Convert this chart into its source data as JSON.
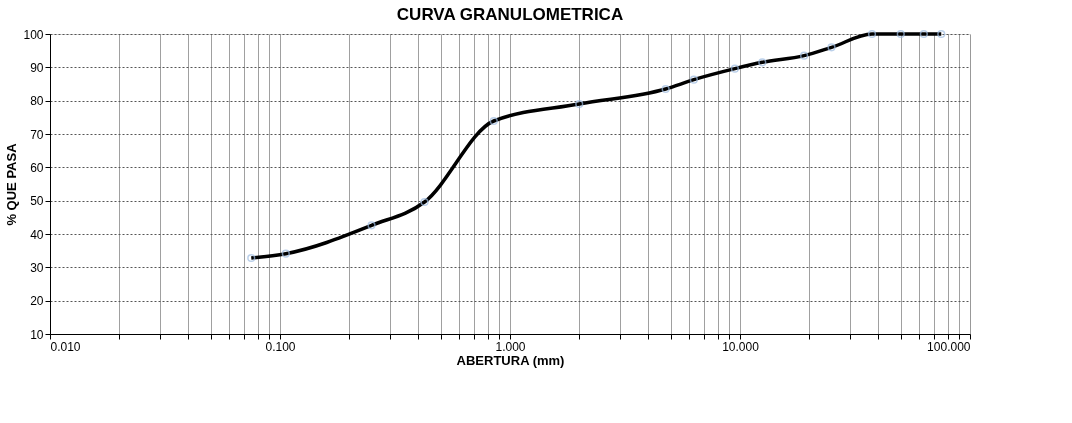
{
  "chart_data": {
    "type": "line",
    "title": "CURVA GRANULOMETRICA",
    "xlabel": "ABERTURA (mm)",
    "ylabel": "% QUE PASA",
    "x": [
      0.075,
      0.106,
      0.25,
      0.425,
      0.85,
      2.0,
      4.75,
      6.3,
      9.5,
      12.5,
      19.0,
      25.0,
      37.5,
      50.0,
      63.0,
      75.0
    ],
    "series": [
      {
        "color": "#000000",
        "values": [
          32.8,
          34.1,
          42.6,
          49.6,
          73.9,
          79.0,
          83.5,
          86.3,
          89.6,
          91.5,
          93.5,
          96.0,
          100,
          100,
          100,
          100
        ]
      }
    ],
    "log": "x",
    "xlim": [
      0.01,
      100
    ],
    "ylim": [
      10,
      100
    ],
    "xticks": [
      {
        "value": 0.01,
        "label": "0.010"
      },
      {
        "value": 0.02,
        "label": null
      },
      {
        "value": 0.03,
        "label": null
      },
      {
        "value": 0.04,
        "label": null
      },
      {
        "value": 0.05,
        "label": null
      },
      {
        "value": 0.06,
        "label": null
      },
      {
        "value": 0.07,
        "label": null
      },
      {
        "value": 0.08,
        "label": null
      },
      {
        "value": 0.09,
        "label": null
      },
      {
        "value": 0.1,
        "label": "0.100"
      },
      {
        "value": 0.2,
        "label": null
      },
      {
        "value": 0.3,
        "label": null
      },
      {
        "value": 0.4,
        "label": null
      },
      {
        "value": 0.5,
        "label": null
      },
      {
        "value": 0.6,
        "label": null
      },
      {
        "value": 0.7,
        "label": null
      },
      {
        "value": 0.8,
        "label": null
      },
      {
        "value": 0.9,
        "label": null
      },
      {
        "value": 1,
        "label": "1.000"
      },
      {
        "value": 2,
        "label": null
      },
      {
        "value": 3,
        "label": null
      },
      {
        "value": 4,
        "label": null
      },
      {
        "value": 5,
        "label": null
      },
      {
        "value": 6,
        "label": null
      },
      {
        "value": 7,
        "label": null
      },
      {
        "value": 8,
        "label": null
      },
      {
        "value": 9,
        "label": null
      },
      {
        "value": 10,
        "label": "10.000"
      },
      {
        "value": 20,
        "label": null
      },
      {
        "value": 30,
        "label": null
      },
      {
        "value": 40,
        "label": null
      },
      {
        "value": 50,
        "label": null
      },
      {
        "value": 60,
        "label": null
      },
      {
        "value": 70,
        "label": null
      },
      {
        "value": 80,
        "label": null
      },
      {
        "value": 90,
        "label": null
      },
      {
        "value": 100,
        "label": "100.000"
      }
    ],
    "yticks": [
      10,
      20,
      30,
      40,
      50,
      60,
      70,
      80,
      90,
      100
    ],
    "grid": true,
    "marker": "circle",
    "line_style": "solid"
  }
}
